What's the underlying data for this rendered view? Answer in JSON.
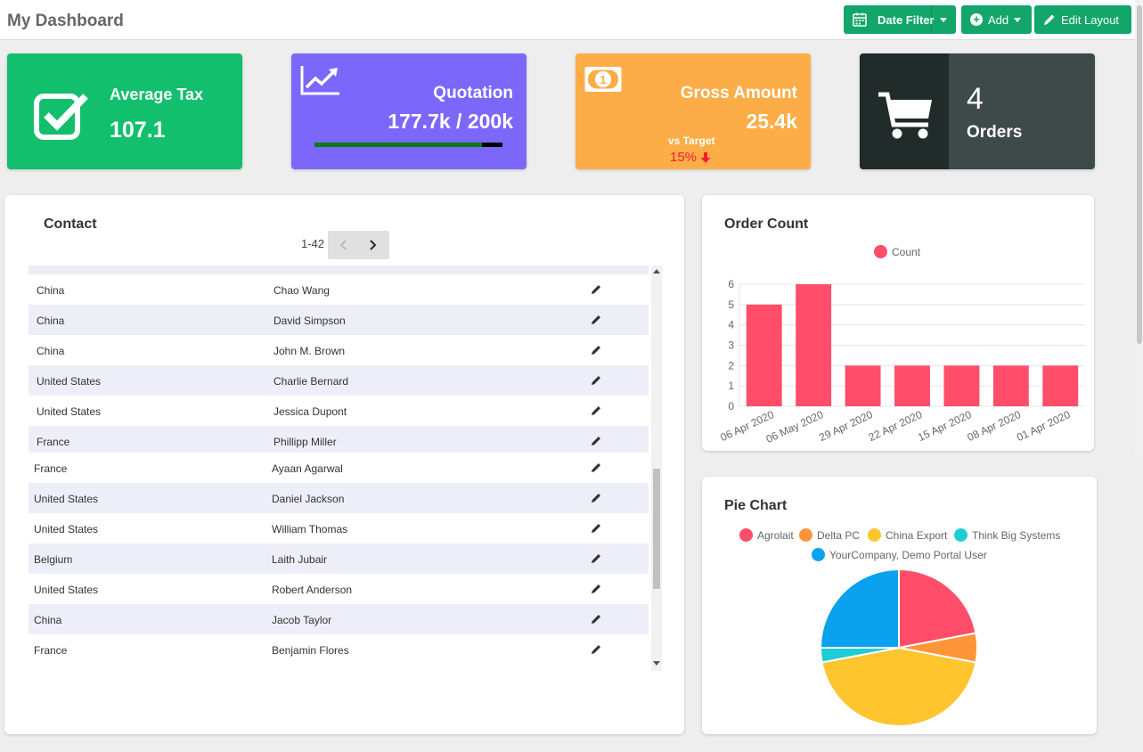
{
  "header": {
    "title": "My Dashboard",
    "date_filter_label": "Date Filter",
    "add_label": "Add",
    "edit_layout_label": "Edit Layout"
  },
  "kpis": {
    "average_tax": {
      "label": "Average Tax",
      "value": "107.1",
      "icon": "checkbox-check-icon"
    },
    "quotation": {
      "label": "Quotation",
      "value": "177.7k / 200k",
      "progress": 0.89,
      "icon": "trend-chart-icon"
    },
    "gross_amount": {
      "label": "Gross Amount",
      "value": "25.4k",
      "sub_label": "vs Target",
      "delta": "15%",
      "delta_direction": "down",
      "icon": "banknote-icon"
    },
    "orders": {
      "value": "4",
      "label": "Orders",
      "icon": "cart-icon"
    }
  },
  "contact": {
    "title": "Contact",
    "pager_text": "1-42",
    "rows": [
      {
        "country": "China",
        "name": "Chao Wang"
      },
      {
        "country": "China",
        "name": "David Simpson"
      },
      {
        "country": "China",
        "name": "John M. Brown"
      },
      {
        "country": "United States",
        "name": "Charlie Bernard"
      },
      {
        "country": "United States",
        "name": "Jessica Dupont"
      },
      {
        "country": "France",
        "name": "Phillipp Miller"
      },
      {
        "country": "France",
        "name": "Ayaan Agarwal"
      },
      {
        "country": "United States",
        "name": "Daniel Jackson"
      },
      {
        "country": "United States",
        "name": "William Thomas"
      },
      {
        "country": "Belgium",
        "name": "Laith Jubair"
      },
      {
        "country": "United States",
        "name": "Robert Anderson"
      },
      {
        "country": "China",
        "name": "Jacob Taylor"
      },
      {
        "country": "France",
        "name": "Benjamin Flores"
      }
    ]
  },
  "order_count": {
    "title": "Order Count",
    "chart_data": {
      "type": "bar",
      "categories": [
        "06 Apr 2020",
        "06 May 2020",
        "29 Apr 2020",
        "22 Apr 2020",
        "15 Apr 2020",
        "08 Apr 2020",
        "01 Apr 2020"
      ],
      "series": [
        {
          "name": "Count",
          "values": [
            5,
            6,
            2,
            2,
            2,
            2,
            2
          ]
        }
      ],
      "ylim": [
        0,
        6
      ],
      "yticks": [
        "0",
        "1",
        "2",
        "3",
        "4",
        "5",
        "6"
      ],
      "grid": true,
      "legend": "top-center",
      "color": "#ff4d6a"
    }
  },
  "pie": {
    "title": "Pie Chart",
    "chart_data": {
      "type": "pie",
      "legend": "top-center",
      "slices": [
        {
          "label": "Agrolait",
          "value": 22,
          "color": "#ff4d6a"
        },
        {
          "label": "Delta PC",
          "value": 6,
          "color": "#ff9439"
        },
        {
          "label": "China Export",
          "value": 44,
          "color": "#ffc52f"
        },
        {
          "label": "Think Big Systems",
          "value": 3,
          "color": "#1ecdd3"
        },
        {
          "label": "YourCompany, Demo Portal User",
          "value": 25,
          "color": "#0aa1ee"
        }
      ]
    }
  }
}
